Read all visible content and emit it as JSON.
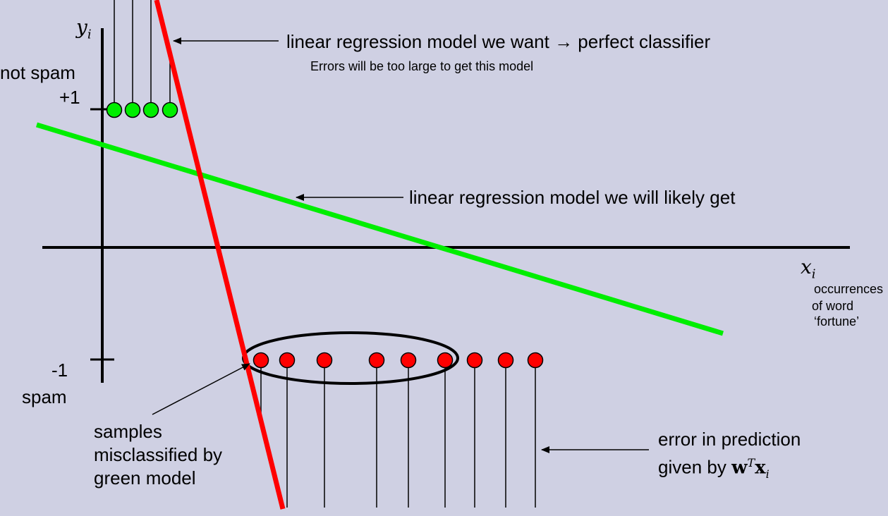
{
  "axes": {
    "y_var": "y",
    "y_sub": "i",
    "x_var": "x",
    "x_sub": "i",
    "x_desc": [
      "occurrences",
      "of  word",
      "‘fortune’"
    ],
    "y_tick_pos": "+1",
    "y_tick_neg": "-1",
    "pos_class": "not spam",
    "neg_class": "spam"
  },
  "models": {
    "wanted": {
      "label": "linear regression model we want → perfect classifier",
      "color": "#ff0000"
    },
    "wanted_note": "Errors will be too large to get this model",
    "likely": {
      "label": "linear regression model we will likely get",
      "color": "#00ee00"
    }
  },
  "samples": {
    "positive_color": "#00ee00",
    "negative_color": "#ff0000",
    "positive_count": 4,
    "negative_count": 9
  },
  "annotations": {
    "misclassified": [
      "samples",
      "misclassified by",
      "green model"
    ],
    "error_line1": "error in prediction",
    "error_prefix": "given by ",
    "error_w": "w",
    "error_T": "T",
    "error_x": "x",
    "error_sub": "i"
  }
}
